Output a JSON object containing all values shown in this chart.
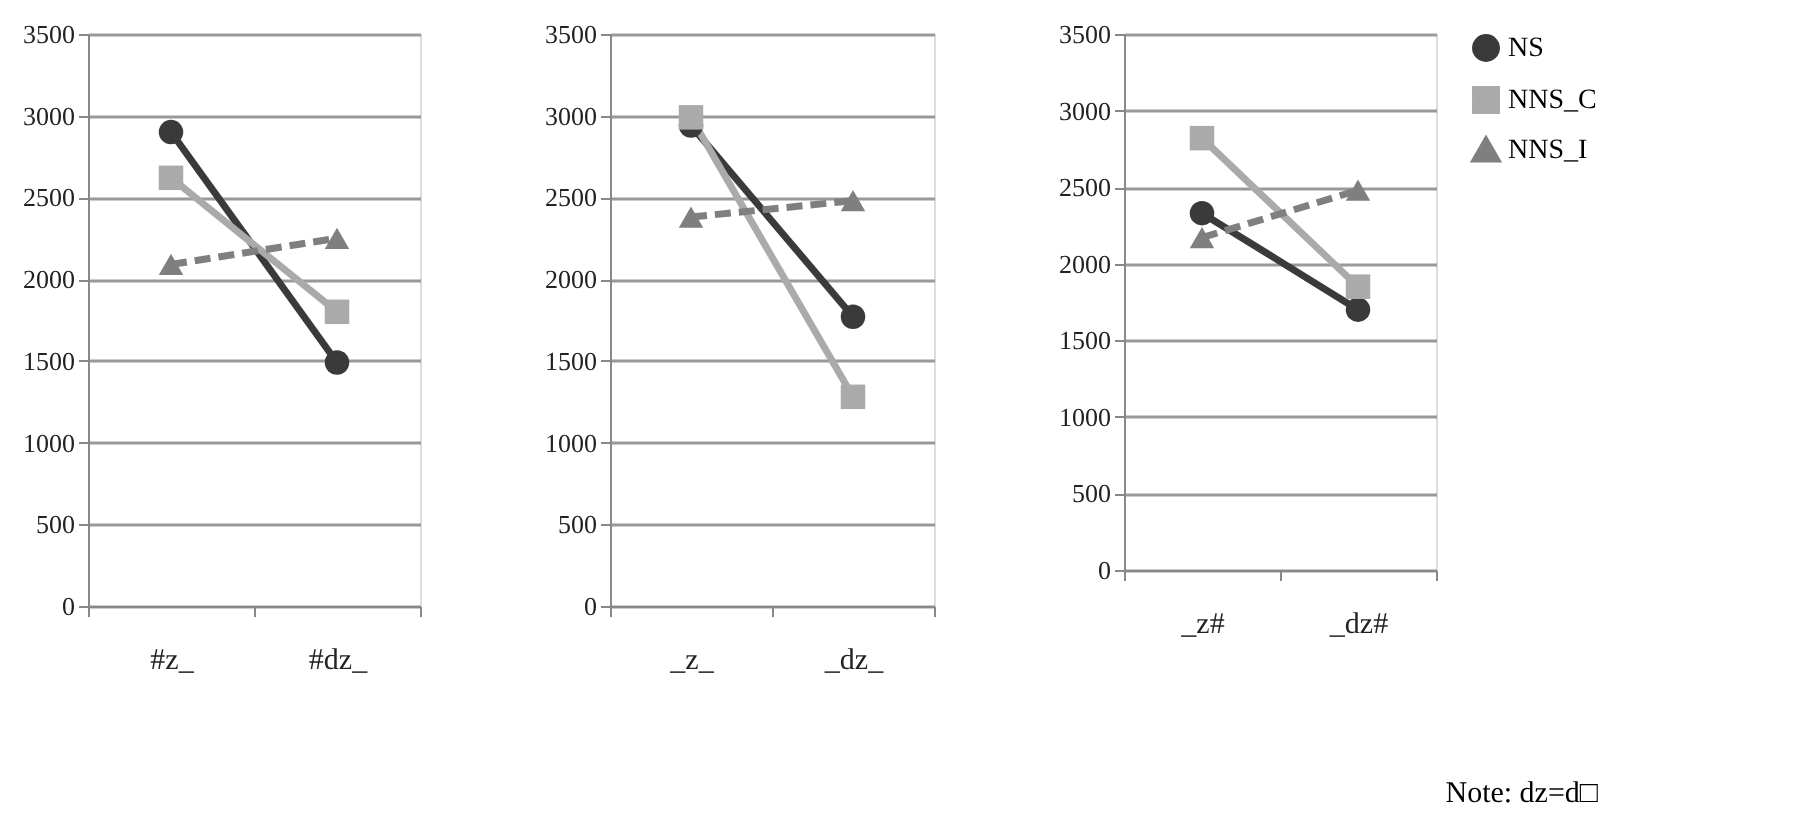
{
  "chart_data": [
    {
      "type": "line",
      "categories": [
        "#z_",
        "#dz_"
      ],
      "ylim": [
        0,
        3500
      ],
      "yticks": [
        0,
        500,
        1000,
        1500,
        2000,
        2500,
        3000,
        3500
      ],
      "grid": "y",
      "legend": false,
      "series": [
        {
          "color": "#3a3a3a",
          "marker": "circle",
          "line_style": "solid",
          "values": [
            2900,
            1490
          ]
        },
        {
          "color": "#aaaaaa",
          "marker": "square",
          "line_style": "solid",
          "values": [
            2620,
            1800
          ]
        },
        {
          "color": "#7f7f7f",
          "marker": "triangle",
          "line_style": "dashed",
          "values": [
            2090,
            2250
          ]
        }
      ]
    },
    {
      "type": "line",
      "categories": [
        "_z_",
        "_dz_"
      ],
      "ylim": [
        0,
        3500
      ],
      "yticks": [
        0,
        500,
        1000,
        1500,
        2000,
        2500,
        3000,
        3500
      ],
      "grid": "y",
      "legend": false,
      "series": [
        {
          "color": "#3a3a3a",
          "marker": "circle",
          "line_style": "solid",
          "values": [
            2940,
            1770
          ]
        },
        {
          "color": "#aaaaaa",
          "marker": "square",
          "line_style": "solid",
          "values": [
            2990,
            1280
          ]
        },
        {
          "color": "#7f7f7f",
          "marker": "triangle",
          "line_style": "dashed",
          "values": [
            2380,
            2480
          ]
        }
      ]
    },
    {
      "type": "line",
      "categories": [
        "_z#",
        "_dz#"
      ],
      "ylim": [
        0,
        3500
      ],
      "yticks": [
        0,
        500,
        1000,
        1500,
        2000,
        2500,
        3000,
        3500
      ],
      "grid": "y",
      "legend": "right",
      "annotations": [
        "Note: dz=d□"
      ],
      "series": [
        {
          "name": "NS",
          "color": "#3a3a3a",
          "marker": "circle",
          "line_style": "solid",
          "values": [
            2330,
            1700
          ]
        },
        {
          "name": "NNS_C",
          "color": "#aaaaaa",
          "marker": "square",
          "line_style": "solid",
          "values": [
            2820,
            1850
          ]
        },
        {
          "name": "NNS_I",
          "color": "#7f7f7f",
          "marker": "triangle",
          "line_style": "dashed",
          "values": [
            2170,
            2480
          ]
        }
      ]
    }
  ]
}
